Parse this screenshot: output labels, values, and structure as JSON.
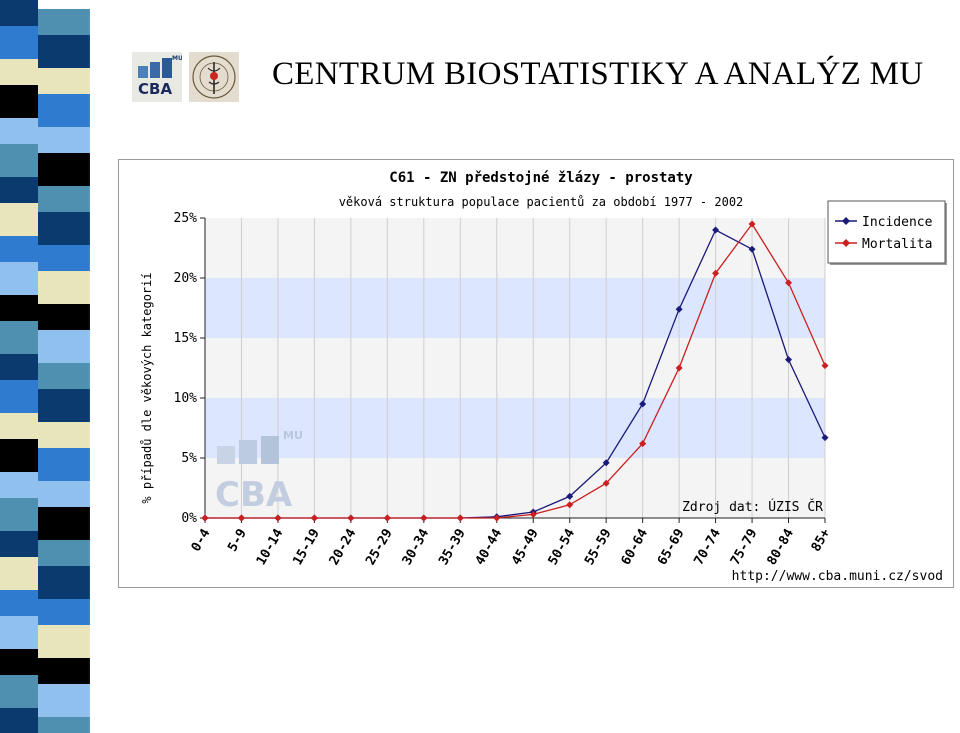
{
  "slide": {
    "title": "CENTRUM BIOSTATISTIKY A ANALÝZ MU",
    "logos": [
      {
        "name": "cba-logo",
        "text": "CBA",
        "superscript": "MU"
      },
      {
        "name": "oncology-society-seal",
        "text": "ČESKÁ ONKOLOGICKÁ SPOLEČNOST"
      }
    ]
  },
  "colors": {
    "incidence": "#1a1a7a",
    "mortalita": "#cc1f1f",
    "band": "#dde6ff",
    "grid": "#cfcfcf",
    "stripe_navy": "#0a3a6e",
    "stripe_blue": "#2f7bd0",
    "stripe_lightblue": "#8fc0ee",
    "stripe_cream": "#e8e5bd",
    "stripe_black": "#000000",
    "stripe_teal": "#4f8fb0"
  },
  "chart_data": {
    "type": "line",
    "title": "C61 - ZN předstojné žlázy - prostaty",
    "subtitle": "věková struktura populace pacientů za období 1977 - 2002",
    "ylabel": "% případů dle věkových kategorií",
    "xlabel": "",
    "ylim": [
      0,
      25
    ],
    "yticks": [
      "0%",
      "5%",
      "10%",
      "15%",
      "20%",
      "25%"
    ],
    "y_tick_values": [
      0,
      5,
      10,
      15,
      20,
      25
    ],
    "categories": [
      "0-4",
      "5-9",
      "10-14",
      "15-19",
      "20-24",
      "25-29",
      "30-34",
      "35-39",
      "40-44",
      "45-49",
      "50-54",
      "55-59",
      "60-64",
      "65-69",
      "70-74",
      "75-79",
      "80-84",
      "85+"
    ],
    "series": [
      {
        "name": "Incidence",
        "values": [
          0,
          0,
          0,
          0,
          0,
          0,
          0,
          0,
          0.1,
          0.5,
          1.8,
          4.6,
          9.5,
          17.4,
          24.0,
          22.4,
          13.2,
          6.7
        ]
      },
      {
        "name": "Mortalita",
        "values": [
          0,
          0,
          0,
          0,
          0,
          0,
          0,
          0,
          0,
          0.3,
          1.1,
          2.9,
          6.2,
          12.5,
          20.4,
          24.5,
          19.6,
          12.7
        ]
      }
    ],
    "legend_position": "top-right",
    "grid": true,
    "annotations": {
      "source": "Zdroj dat: ÚZIS ČR",
      "url": "http://www.cba.muni.cz/svod",
      "watermark": "CBA",
      "watermark_sup": "MU"
    }
  }
}
